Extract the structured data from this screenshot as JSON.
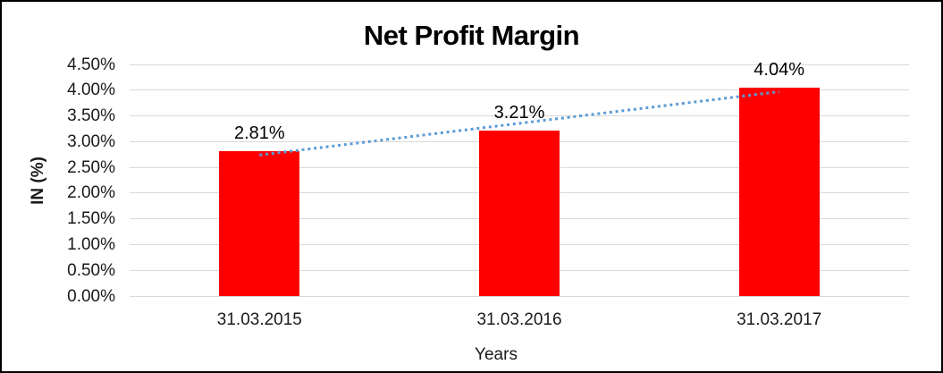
{
  "window": {
    "background": "#FFFFFF",
    "border_color": "#000000"
  },
  "chart_data": {
    "type": "bar",
    "title": "Net Profit Margin",
    "categories": [
      "31.03.2015",
      "31.03.2016",
      "31.03.2017"
    ],
    "values": [
      2.81,
      3.21,
      4.04
    ],
    "data_labels": [
      "2.81%",
      "3.21%",
      "4.04%"
    ],
    "xlabel": "Years",
    "ylabel": "IN (%)",
    "ylim": [
      0,
      4.5
    ],
    "ytick_step": 0.5,
    "ytick_labels": [
      "4.50%",
      "4.00%",
      "3.50%",
      "3.00%",
      "2.50%",
      "2.00%",
      "1.50%",
      "1.00%",
      "0.50%",
      "0.00%"
    ],
    "grid": true,
    "legend": "none",
    "bar_color": "#FF0000",
    "gridline_color": "#D9D9D9",
    "text_color": "#1A1A1A",
    "trendline": {
      "type": "linear",
      "style": "dotted",
      "color": "#5B9BD5",
      "start": {
        "category_index": 0,
        "value": 2.74
      },
      "end": {
        "category_index": 2,
        "value": 3.97
      }
    }
  }
}
